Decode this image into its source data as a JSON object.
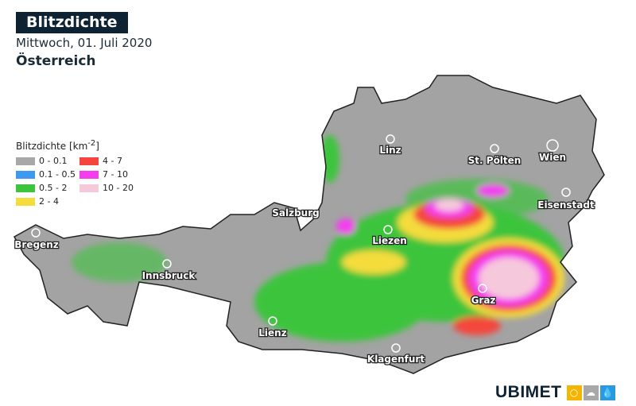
{
  "header": {
    "title": "Blitzdichte",
    "date": "Mittwoch, 01. Juli 2020",
    "region": "Österreich"
  },
  "legend": {
    "title": "Blitzdichte [km",
    "title_sup": "-2",
    "title_end": "]",
    "items": [
      {
        "label": "0 - 0.1",
        "color": "#a8a8a8"
      },
      {
        "label": "4 - 7",
        "color": "#f4463c"
      },
      {
        "label": "0.1 - 0.5",
        "color": "#3d9af0"
      },
      {
        "label": "7 - 10",
        "color": "#f43cf0"
      },
      {
        "label": "0.5 - 2",
        "color": "#3cc43c"
      },
      {
        "label": "10 - 20",
        "color": "#f6c8dc"
      },
      {
        "label": "2 - 4",
        "color": "#f4dc3c"
      }
    ]
  },
  "cities": [
    {
      "name": "Linz"
    },
    {
      "name": "St. Pölten"
    },
    {
      "name": "Wien"
    },
    {
      "name": "Eisenstadt"
    },
    {
      "name": "Salzburg"
    },
    {
      "name": "Liezen"
    },
    {
      "name": "Bregenz"
    },
    {
      "name": "Innsbruck"
    },
    {
      "name": "Graz"
    },
    {
      "name": "Lienz"
    },
    {
      "name": "Klagenfurt"
    }
  ],
  "logo": {
    "text": "UBIMET",
    "icons": [
      "sun-icon",
      "cloud-icon",
      "drop-icon"
    ],
    "colors": [
      "#f5b400",
      "#a8a8a8",
      "#2a9ae0"
    ]
  }
}
